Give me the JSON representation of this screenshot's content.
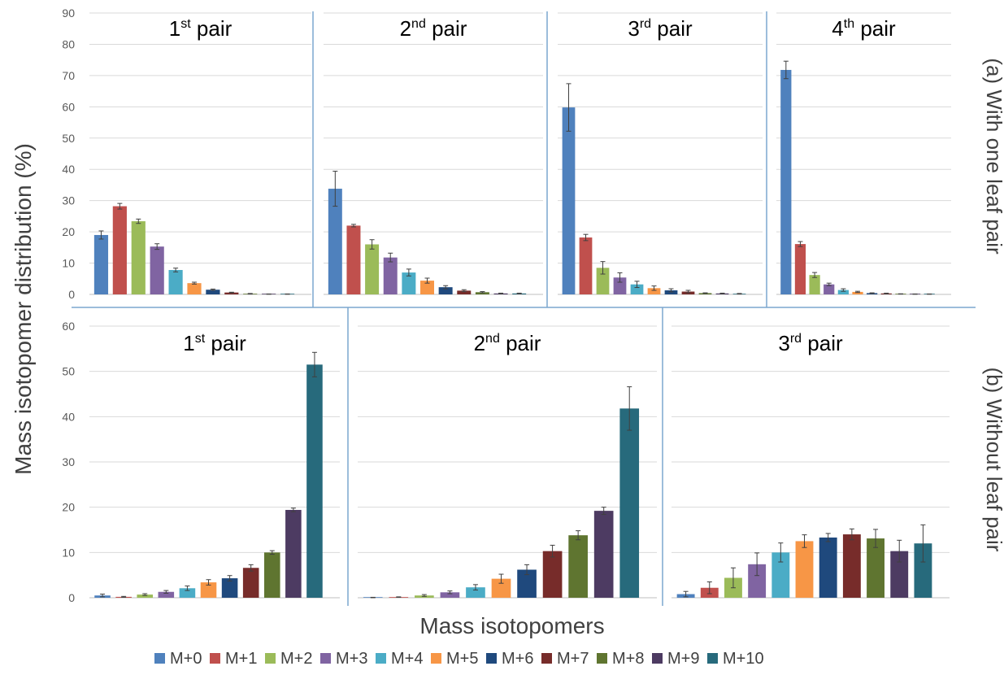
{
  "chart_data": {
    "type": "bar",
    "ylabel": "Mass isotopomer distribution (%)",
    "xlabel": "Mass isotopomers",
    "legend_position": "bottom",
    "series": [
      {
        "name": "M+0",
        "color": "#4F81BD"
      },
      {
        "name": "M+1",
        "color": "#C0504D"
      },
      {
        "name": "M+2",
        "color": "#9BBB59"
      },
      {
        "name": "M+3",
        "color": "#8064A2"
      },
      {
        "name": "M+4",
        "color": "#4BACC6"
      },
      {
        "name": "M+5",
        "color": "#F79646"
      },
      {
        "name": "M+6",
        "color": "#1F497D"
      },
      {
        "name": "M+7",
        "color": "#772C2A"
      },
      {
        "name": "M+8",
        "color": "#5F7530"
      },
      {
        "name": "M+9",
        "color": "#4D3B62"
      },
      {
        "name": "M+10",
        "color": "#276A7C"
      }
    ],
    "rows": [
      {
        "label": "(a) With one leaf pair",
        "ylim": [
          0,
          90
        ],
        "yticks": [
          0,
          10,
          20,
          30,
          40,
          50,
          60,
          70,
          80,
          90
        ],
        "panels": [
          {
            "title_main": "1",
            "title_sup": "st",
            "title_rest": " pair",
            "values": [
              19,
              28.2,
              23.4,
              15.3,
              7.8,
              3.6,
              1.5,
              0.6,
              0.2,
              0.1,
              0.1
            ],
            "errors": [
              1.3,
              0.9,
              0.7,
              0.9,
              0.6,
              0.3,
              0.2,
              0.1,
              0.1,
              0.05,
              0.05
            ]
          },
          {
            "title_main": "2",
            "title_sup": "nd",
            "title_rest": " pair",
            "values": [
              33.8,
              22,
              16,
              11.8,
              7,
              4.4,
              2.3,
              1.2,
              0.7,
              0.3,
              0.3
            ],
            "errors": [
              5.6,
              0.4,
              1.5,
              1.4,
              1.1,
              0.8,
              0.5,
              0.3,
              0.2,
              0.1,
              0.1
            ]
          },
          {
            "title_main": "3",
            "title_sup": "rd",
            "title_rest": " pair",
            "values": [
              59.8,
              18.2,
              8.5,
              5.4,
              3.2,
              2,
              1.3,
              0.9,
              0.4,
              0.3,
              0.2
            ],
            "errors": [
              7.6,
              1,
              2,
              1.5,
              1,
              0.7,
              0.5,
              0.4,
              0.1,
              0.1,
              0.1
            ]
          },
          {
            "title_main": "4",
            "title_sup": "th",
            "title_rest": " pair",
            "values": [
              71.8,
              16.1,
              6.2,
              3.2,
              1.4,
              0.8,
              0.4,
              0.3,
              0.15,
              0.1,
              0.1
            ],
            "errors": [
              2.8,
              0.8,
              0.8,
              0.4,
              0.4,
              0.2,
              0.1,
              0.1,
              0.05,
              0.05,
              0.05
            ]
          }
        ]
      },
      {
        "label": "(b) Without leaf pair",
        "ylim": [
          0,
          60
        ],
        "yticks": [
          0,
          10,
          20,
          30,
          40,
          50,
          60
        ],
        "panels": [
          {
            "title_main": "1",
            "title_sup": "st",
            "title_rest": " pair",
            "values": [
              0.5,
              0.2,
              0.7,
              1.3,
              2.1,
              3.4,
              4.3,
              6.6,
              10,
              19.4,
              51.5
            ],
            "errors": [
              0.3,
              0.1,
              0.2,
              0.3,
              0.5,
              0.6,
              0.6,
              0.7,
              0.4,
              0.4,
              2.7
            ]
          },
          {
            "title_main": "2",
            "title_sup": "nd",
            "title_rest": " pair",
            "values": [
              0.05,
              0.15,
              0.5,
              1.2,
              2.3,
              4.2,
              6.2,
              10.3,
              13.8,
              19.2,
              41.8
            ],
            "errors": [
              0.05,
              0.05,
              0.2,
              0.3,
              0.6,
              1,
              1.1,
              1.3,
              1,
              0.8,
              4.8
            ]
          },
          {
            "title_main": "3",
            "title_sup": "rd",
            "title_rest": " pair",
            "values": [
              0.8,
              2.2,
              4.4,
              7.4,
              10,
              12.5,
              13.3,
              14,
              13.1,
              10.3,
              12
            ],
            "errors": [
              0.6,
              1.3,
              2.2,
              2.5,
              2.1,
              1.4,
              0.9,
              1.2,
              2,
              2.4,
              4.1
            ]
          }
        ]
      }
    ]
  }
}
